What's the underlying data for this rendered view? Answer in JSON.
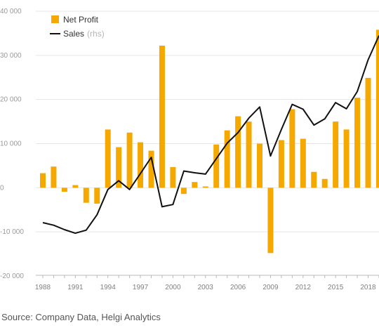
{
  "chart_data": {
    "type": "bar",
    "y_ticks": [
      "40 000",
      "30 000",
      "20 000",
      "10 000",
      "0",
      "-10 000",
      "-20 000"
    ],
    "y_tick_values": [
      40000,
      30000,
      20000,
      10000,
      0,
      -10000,
      -20000
    ],
    "ylim": [
      -20000,
      40000
    ],
    "x_tick_labels": [
      "1988",
      "1991",
      "1994",
      "1997",
      "2000",
      "2003",
      "2006",
      "2009",
      "2012",
      "2015",
      "2018"
    ],
    "x_tick_years": [
      1988,
      1991,
      1994,
      1997,
      2000,
      2003,
      2006,
      2009,
      2012,
      2015,
      2018
    ],
    "x": [
      1988,
      1989,
      1990,
      1991,
      1992,
      1993,
      1994,
      1995,
      1996,
      1997,
      1998,
      1999,
      2000,
      2001,
      2002,
      2003,
      2004,
      2005,
      2006,
      2007,
      2008,
      2009,
      2010,
      2011,
      2012,
      2013,
      2014,
      2015,
      2016,
      2017,
      2018,
      2019
    ],
    "series": [
      {
        "name": "Net Profit",
        "kind": "bar",
        "color": "#f5a800",
        "values": [
          3300,
          4800,
          -900,
          600,
          -3400,
          -3600,
          13200,
          9200,
          12500,
          10300,
          8400,
          32200,
          4700,
          -1400,
          1300,
          300,
          9800,
          13000,
          16200,
          15000,
          10000,
          -14800,
          10800,
          17800,
          11100,
          3600,
          2000,
          15000,
          13200,
          20400,
          24900,
          35800
        ]
      },
      {
        "name": "Sales",
        "note": "(rhs)",
        "kind": "line",
        "color": "#111111",
        "values": [
          -7900,
          -8500,
          -9500,
          -10300,
          -9600,
          -6100,
          -400,
          1600,
          -400,
          3200,
          6900,
          -4300,
          -3800,
          3800,
          3400,
          3100,
          6600,
          10100,
          12500,
          15800,
          18300,
          7200,
          13200,
          18900,
          17800,
          14200,
          15600,
          19300,
          17900,
          21800,
          29000,
          34500
        ]
      }
    ]
  },
  "legend": {
    "net_profit_label": "Net Profit",
    "sales_label": "Sales",
    "sales_note": "(rhs)"
  },
  "footer": {
    "source": "Source: Company Data, Helgi Analytics"
  }
}
